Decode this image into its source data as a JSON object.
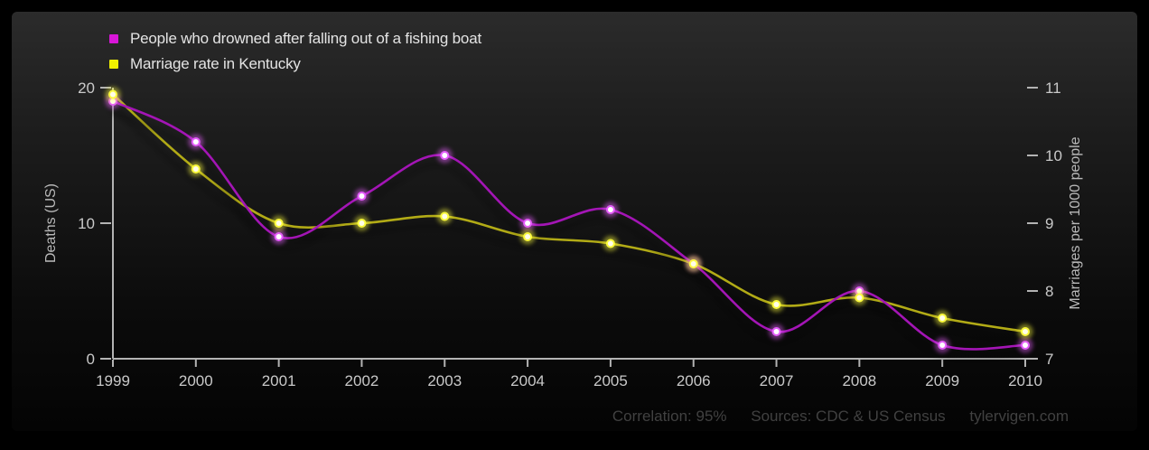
{
  "chart_data": {
    "type": "line",
    "x": [
      1999,
      2000,
      2001,
      2002,
      2003,
      2004,
      2005,
      2006,
      2007,
      2008,
      2009,
      2010
    ],
    "series": [
      {
        "name": "People who drowned after falling out of a fishing boat",
        "axis": "left",
        "color": "#a312b5",
        "swatch": "#d816d8",
        "glow": "#e95fff",
        "core": "#ffffff",
        "values": [
          19,
          16,
          9,
          12,
          15,
          10,
          11,
          7,
          2,
          5,
          1,
          1
        ]
      },
      {
        "name": "Marriage rate in Kentucky",
        "axis": "right",
        "color": "#b2ab15",
        "swatch": "#f0f000",
        "glow": "#ffff3d",
        "core": "#fffde8",
        "values": [
          10.9,
          9.8,
          9.0,
          9.0,
          9.1,
          8.8,
          8.7,
          8.4,
          7.8,
          7.9,
          7.6,
          7.4
        ]
      }
    ],
    "left_axis": {
      "label": "Deaths (US)",
      "ticks": [
        0,
        10,
        20
      ],
      "range": [
        0,
        20
      ]
    },
    "right_axis": {
      "label": "Marriages per 1000 people",
      "ticks": [
        7,
        8,
        9,
        10,
        11
      ],
      "range": [
        7,
        11
      ]
    },
    "legend_position": "top-left",
    "grid": false,
    "background": {
      "outer": "#000000",
      "panel_top": "#2b2b2b",
      "panel_bottom": "#040404"
    },
    "axis_color": "#b3b3b3",
    "tick_label_color": "#c9c9c9"
  },
  "footer": {
    "correlation": "Correlation: 95%",
    "sources": "Sources: CDC & US Census",
    "site": "tylervigen.com"
  }
}
